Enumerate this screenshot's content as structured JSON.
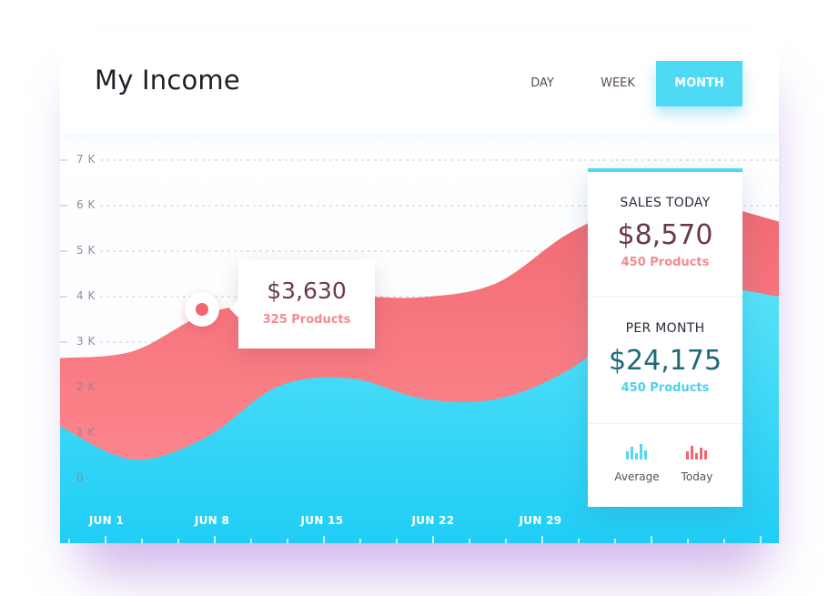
{
  "header": {
    "title": "My Income",
    "tabs": [
      {
        "label": "DAY",
        "active": false
      },
      {
        "label": "WEEK",
        "active": false
      },
      {
        "label": "MONTH",
        "active": true
      }
    ]
  },
  "tooltip": {
    "amount": "$3,630",
    "products": "325 Products"
  },
  "side_panel": {
    "sales_today": {
      "label": "SALES TODAY",
      "value": "$8,570",
      "products": "450 Products"
    },
    "per_month": {
      "label": "PER MONTH",
      "value": "$24,175",
      "products": "450 Products"
    },
    "legend": [
      {
        "label": "Average",
        "icon": "bar-chart-icon",
        "color": "#4ed9f4"
      },
      {
        "label": "Today",
        "icon": "bar-chart-icon",
        "color": "#f0656e"
      }
    ]
  },
  "colors": {
    "accent": "#4ed9f4",
    "red": "#f0656e",
    "dark_value": "#6b3a48",
    "teal_value": "#1f6878"
  },
  "chart_data": {
    "type": "area",
    "ytick_labels": [
      "7 K",
      "6 K",
      "5 K",
      "4 K",
      "3 K",
      "2 K",
      "1 K",
      "0"
    ],
    "ylim": [
      0,
      7000
    ],
    "xtick_labels": [
      "JUN 1",
      "JUN 8",
      "JUN 15",
      "JUN 22",
      "JUN 29"
    ],
    "x": [
      0,
      4,
      8,
      12,
      16,
      20,
      24,
      28,
      32,
      36,
      39.5
    ],
    "grid": true,
    "series": [
      {
        "color": "#f0656e",
        "values": [
          2650,
          2800,
          3620,
          3900,
          4000,
          3990,
          4300,
          5400,
          6050,
          6000,
          5650
        ]
      },
      {
        "color": "#4ed9f4",
        "values": [
          1150,
          420,
          900,
          2030,
          2200,
          1750,
          1750,
          2400,
          3600,
          4150,
          4000
        ]
      }
    ],
    "highlight": {
      "x": 7.5,
      "y": 3630
    }
  }
}
